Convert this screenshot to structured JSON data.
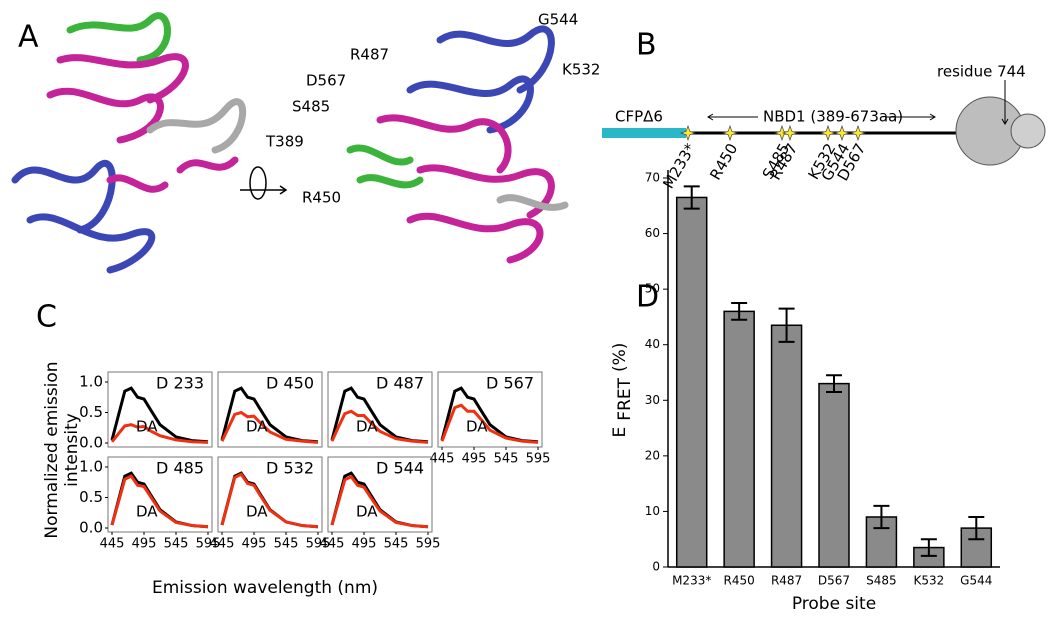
{
  "panel_labels": [
    "A",
    "B",
    "C",
    "D"
  ],
  "structure": {
    "labels": [
      "G544",
      "R487",
      "K532",
      "D567",
      "S485",
      "T389",
      "R450"
    ]
  },
  "diagram": {
    "donor_label": "CFPΔ6",
    "domain_label": "NBD1 (389-673aa)",
    "residue_label": "residue 744",
    "sites": [
      "M233*",
      "R450",
      "S485",
      "R487",
      "K532",
      "G544",
      "D567"
    ]
  },
  "spectra": {
    "y_label": [
      "Normalized emission",
      "intensity"
    ],
    "x_label": "Emission wavelength (nm)"
  },
  "chart_data": [
    {
      "type": "line",
      "title": "233",
      "x": [
        445,
        455,
        465,
        475,
        485,
        495,
        505,
        520,
        545,
        570,
        595
      ],
      "xlim": [
        445,
        595
      ],
      "ylim": [
        0,
        1
      ],
      "yticks": [
        {
          "value": 0,
          "label": "0.0"
        },
        0.5,
        {
          "value": 1,
          "label": "1.0"
        }
      ],
      "series": [
        {
          "name": "D",
          "color": "#000000",
          "values": [
            0.05,
            0.45,
            0.85,
            0.9,
            0.75,
            0.72,
            0.55,
            0.3,
            0.1,
            0.04,
            0.02
          ]
        },
        {
          "name": "DA",
          "color": "#f03010",
          "values": [
            0.02,
            0.15,
            0.28,
            0.3,
            0.26,
            0.27,
            0.2,
            0.12,
            0.05,
            0.02,
            0.01
          ]
        }
      ]
    },
    {
      "type": "line",
      "title": "450",
      "x": [
        445,
        455,
        465,
        475,
        485,
        495,
        505,
        520,
        545,
        570,
        595
      ],
      "xlim": [
        445,
        595
      ],
      "ylim": [
        0,
        1
      ],
      "series": [
        {
          "name": "D",
          "color": "#000000",
          "values": [
            0.05,
            0.45,
            0.85,
            0.9,
            0.75,
            0.72,
            0.55,
            0.3,
            0.1,
            0.04,
            0.02
          ]
        },
        {
          "name": "DA",
          "color": "#f03010",
          "values": [
            0.03,
            0.25,
            0.47,
            0.5,
            0.43,
            0.44,
            0.33,
            0.18,
            0.06,
            0.03,
            0.01
          ]
        }
      ]
    },
    {
      "type": "line",
      "title": "487",
      "x": [
        445,
        455,
        465,
        475,
        485,
        495,
        505,
        520,
        545,
        570,
        595
      ],
      "xlim": [
        445,
        595
      ],
      "ylim": [
        0,
        1
      ],
      "series": [
        {
          "name": "D",
          "color": "#000000",
          "values": [
            0.05,
            0.45,
            0.85,
            0.9,
            0.75,
            0.72,
            0.55,
            0.3,
            0.1,
            0.04,
            0.02
          ]
        },
        {
          "name": "DA",
          "color": "#f03010",
          "values": [
            0.03,
            0.26,
            0.48,
            0.52,
            0.45,
            0.45,
            0.34,
            0.19,
            0.07,
            0.03,
            0.01
          ]
        }
      ]
    },
    {
      "type": "line",
      "title": "567",
      "x": [
        445,
        455,
        465,
        475,
        485,
        495,
        505,
        520,
        545,
        570,
        595
      ],
      "xlim": [
        445,
        595
      ],
      "ylim": [
        0,
        1
      ],
      "xticks": [
        445,
        495,
        545,
        595
      ],
      "series": [
        {
          "name": "D",
          "color": "#000000",
          "values": [
            0.05,
            0.45,
            0.85,
            0.9,
            0.75,
            0.72,
            0.55,
            0.3,
            0.1,
            0.04,
            0.02
          ]
        },
        {
          "name": "DA",
          "color": "#f03010",
          "values": [
            0.03,
            0.31,
            0.58,
            0.62,
            0.52,
            0.52,
            0.4,
            0.21,
            0.08,
            0.03,
            0.01
          ]
        }
      ]
    },
    {
      "type": "line",
      "title": "485",
      "x": [
        445,
        455,
        465,
        475,
        485,
        495,
        505,
        520,
        545,
        570,
        595
      ],
      "xlim": [
        445,
        595
      ],
      "ylim": [
        0,
        1
      ],
      "yticks": [
        {
          "value": 0,
          "label": "0.0"
        },
        0.5,
        {
          "value": 1,
          "label": "1.0"
        }
      ],
      "xticks": [
        445,
        495,
        545,
        595
      ],
      "series": [
        {
          "name": "D",
          "color": "#000000",
          "values": [
            0.05,
            0.45,
            0.85,
            0.9,
            0.75,
            0.72,
            0.55,
            0.3,
            0.1,
            0.04,
            0.02
          ]
        },
        {
          "name": "DA",
          "color": "#f03010",
          "values": [
            0.05,
            0.42,
            0.8,
            0.85,
            0.7,
            0.68,
            0.52,
            0.28,
            0.09,
            0.04,
            0.02
          ]
        }
      ]
    },
    {
      "type": "line",
      "title": "532",
      "x": [
        445,
        455,
        465,
        475,
        485,
        495,
        505,
        520,
        545,
        570,
        595
      ],
      "xlim": [
        445,
        595
      ],
      "ylim": [
        0,
        1
      ],
      "xticks": [
        445,
        495,
        545,
        595
      ],
      "series": [
        {
          "name": "D",
          "color": "#000000",
          "values": [
            0.05,
            0.45,
            0.85,
            0.9,
            0.75,
            0.72,
            0.55,
            0.3,
            0.1,
            0.04,
            0.02
          ]
        },
        {
          "name": "DA",
          "color": "#f03010",
          "values": [
            0.05,
            0.44,
            0.83,
            0.88,
            0.73,
            0.7,
            0.53,
            0.29,
            0.1,
            0.04,
            0.02
          ]
        }
      ]
    },
    {
      "type": "line",
      "title": "544",
      "x": [
        445,
        455,
        465,
        475,
        485,
        495,
        505,
        520,
        545,
        570,
        595
      ],
      "xlim": [
        445,
        595
      ],
      "ylim": [
        0,
        1
      ],
      "xticks": [
        445,
        495,
        545,
        595
      ],
      "series": [
        {
          "name": "D",
          "color": "#000000",
          "values": [
            0.05,
            0.45,
            0.85,
            0.9,
            0.75,
            0.72,
            0.55,
            0.3,
            0.1,
            0.04,
            0.02
          ]
        },
        {
          "name": "DA",
          "color": "#f03010",
          "values": [
            0.05,
            0.42,
            0.79,
            0.84,
            0.7,
            0.67,
            0.51,
            0.28,
            0.09,
            0.04,
            0.02
          ]
        }
      ]
    },
    {
      "type": "bar",
      "categories": [
        "M233*",
        "R450",
        "R487",
        "D567",
        "S485",
        "K532",
        "G544"
      ],
      "values": [
        66.5,
        46,
        43.5,
        33,
        9,
        3.5,
        7
      ],
      "errors": [
        2,
        1.5,
        3,
        1.5,
        2,
        1.5,
        2
      ],
      "color": "#8a8a8a",
      "ylim": [
        0,
        70
      ],
      "yticks": [
        0,
        10,
        20,
        30,
        40,
        50,
        60,
        70
      ],
      "y_label": {
        "main": "E",
        "sub": "FRET",
        "unit": "(%)"
      },
      "x_label": "Probe site"
    }
  ]
}
